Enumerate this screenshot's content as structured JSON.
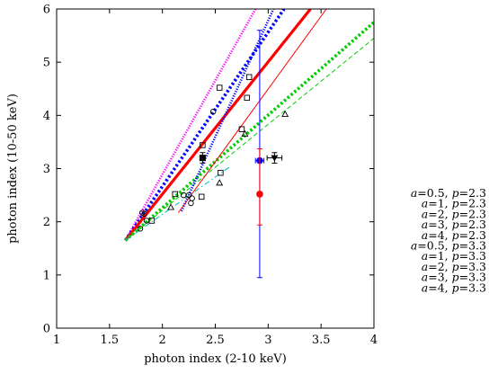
{
  "chart_data": {
    "type": "line",
    "title": "",
    "xlabel": "photon index (2-10 keV)",
    "ylabel": "photon index (10-50 keV)",
    "xlim": [
      1,
      4
    ],
    "ylim": [
      0,
      6
    ],
    "x_ticks": [
      1,
      1.5,
      2,
      2.5,
      3,
      3.5,
      4
    ],
    "y_ticks": [
      0,
      1,
      2,
      3,
      4,
      5,
      6
    ],
    "legend_placement": "right, outside plot",
    "series": [
      {
        "label": "a=0.5, p=2.3",
        "color": "#ff00ff",
        "dash": "dotted",
        "points": [
          [
            1.65,
            1.65
          ],
          [
            2.88,
            6.0
          ]
        ]
      },
      {
        "label": "a=1, p=2.3",
        "color": "#0000ff",
        "dash": "thickdot",
        "points": [
          [
            1.65,
            1.65
          ],
          [
            3.15,
            6.0
          ]
        ]
      },
      {
        "label": "a=2, p=2.3",
        "color": "#ff0000",
        "dash": "solid-thick",
        "points": [
          [
            1.65,
            1.65
          ],
          [
            3.4,
            6.0
          ]
        ]
      },
      {
        "label": "a=3, p=2.3",
        "color": "#00cc00",
        "dash": "thickdot",
        "points": [
          [
            1.65,
            1.65
          ],
          [
            4.0,
            5.75
          ]
        ]
      },
      {
        "label": "a=4, p=2.3",
        "color": "#00cc00",
        "dash": "dashed",
        "points": [
          [
            1.65,
            1.65
          ],
          [
            4.0,
            5.45
          ]
        ]
      },
      {
        "label": "a=0.5, p=3.3",
        "color": "#0000ff",
        "dash": "dotted",
        "points": [
          [
            2.18,
            2.2
          ],
          [
            3.05,
            6.0
          ]
        ]
      },
      {
        "label": "a=1, p=3.3",
        "color": "#ff0000",
        "dash": "solid-thin",
        "points": [
          [
            2.15,
            2.17
          ],
          [
            3.55,
            6.0
          ]
        ]
      },
      {
        "label": "a=2, p=3.3",
        "color": "#00bbbb",
        "dash": "dashdot",
        "points": [
          [
            1.65,
            1.65
          ],
          [
            2.65,
            3.05
          ]
        ]
      }
    ],
    "markers": [
      {
        "shape": "circle",
        "x": 1.81,
        "y": 2.17
      },
      {
        "shape": "circle",
        "x": 1.83,
        "y": 2.15
      },
      {
        "shape": "circle",
        "x": 1.85,
        "y": 2.02
      },
      {
        "shape": "circle",
        "x": 1.79,
        "y": 1.87
      },
      {
        "shape": "circle",
        "x": 2.2,
        "y": 2.5
      },
      {
        "shape": "circle",
        "x": 2.25,
        "y": 2.5
      },
      {
        "shape": "circle",
        "x": 2.28,
        "y": 2.44
      },
      {
        "shape": "circle",
        "x": 2.27,
        "y": 2.35
      },
      {
        "shape": "circle",
        "x": 2.48,
        "y": 4.07
      },
      {
        "shape": "square",
        "x": 1.9,
        "y": 2.02
      },
      {
        "shape": "square",
        "x": 2.12,
        "y": 2.52
      },
      {
        "shape": "square",
        "x": 2.37,
        "y": 2.47
      },
      {
        "shape": "square",
        "x": 2.55,
        "y": 2.92
      },
      {
        "shape": "square",
        "x": 2.38,
        "y": 3.44
      },
      {
        "shape": "square",
        "x": 2.75,
        "y": 3.74
      },
      {
        "shape": "square",
        "x": 2.8,
        "y": 4.33
      },
      {
        "shape": "square",
        "x": 2.54,
        "y": 4.52
      },
      {
        "shape": "square",
        "x": 2.82,
        "y": 4.72
      },
      {
        "shape": "triangle",
        "x": 2.08,
        "y": 2.27
      },
      {
        "shape": "triangle",
        "x": 2.54,
        "y": 2.73
      },
      {
        "shape": "triangle",
        "x": 2.78,
        "y": 3.65
      },
      {
        "shape": "triangle",
        "x": 3.16,
        "y": 4.02
      }
    ],
    "error_points": [
      {
        "marker": "square-filled",
        "color": "#000000",
        "x": 2.38,
        "y": 3.2,
        "xerr": [
          0.02,
          0.02
        ],
        "yerr": [
          0.1,
          0.1
        ]
      },
      {
        "marker": "circle-filled",
        "color": "#0000ff",
        "x": 2.92,
        "y": 3.15,
        "xerr": [
          0.04,
          0.04
        ],
        "yerr": [
          2.2,
          2.45
        ]
      },
      {
        "marker": "circle-filled",
        "color": "#ff0000",
        "x": 2.92,
        "y": 2.52,
        "xerr": [
          0.02,
          0.02
        ],
        "yerr": [
          0.58,
          0.85
        ]
      },
      {
        "marker": "triangle-down-filled",
        "color": "#000000",
        "x": 3.06,
        "y": 3.2,
        "xerr": [
          0.07,
          0.07
        ],
        "yerr": [
          0.1,
          0.1
        ]
      }
    ],
    "legend_extra": [
      "a=3, p=3.3",
      "a=4, p=3.3"
    ]
  }
}
